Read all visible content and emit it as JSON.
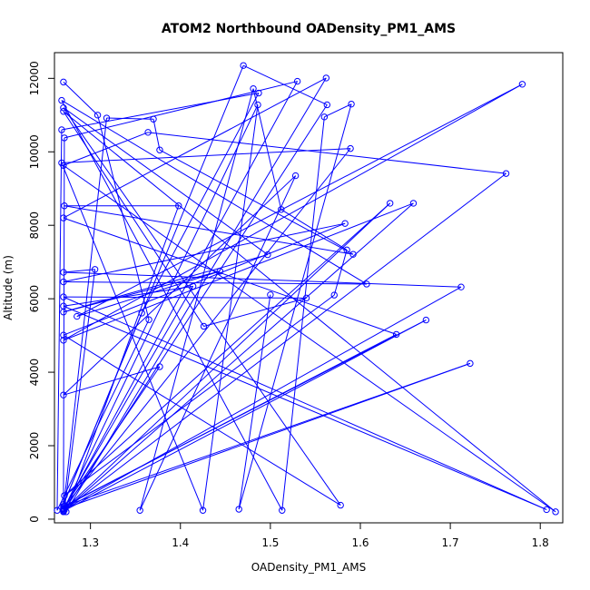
{
  "chart_data": {
    "type": "line",
    "title": "ATOM2 Northbound OADensity_PM1_AMS",
    "xlabel": "OADensity_PM1_AMS",
    "ylabel": "Altitude (m)",
    "xlim": [
      1.26,
      1.825
    ],
    "ylim": [
      -100,
      12700
    ],
    "x_ticks": [
      1.3,
      1.4,
      1.5,
      1.6,
      1.7,
      1.8
    ],
    "y_ticks": [
      0,
      2000,
      4000,
      6000,
      8000,
      10000,
      12000
    ],
    "grid": false,
    "legend": "none",
    "series": [
      {
        "color": "#0000ff",
        "marker": "open-circle",
        "points": [
          [
            1.27,
            11900
          ],
          [
            1.308,
            11000
          ],
          [
            1.365,
            5430
          ],
          [
            1.263,
            240
          ],
          [
            1.268,
            10600
          ],
          [
            1.487,
            11600
          ],
          [
            1.357,
            5610
          ],
          [
            1.27,
            400
          ],
          [
            1.47,
            12350
          ],
          [
            1.563,
            11280
          ],
          [
            1.27,
            200
          ],
          [
            1.271,
            10380
          ],
          [
            1.53,
            11920
          ],
          [
            1.27,
            250
          ],
          [
            1.486,
            11280
          ],
          [
            1.425,
            240
          ],
          [
            1.268,
            9700
          ],
          [
            1.589,
            10090
          ],
          [
            1.27,
            300
          ],
          [
            1.318,
            10920
          ],
          [
            1.37,
            10890
          ],
          [
            1.377,
            10050
          ],
          [
            1.592,
            7210
          ],
          [
            1.271,
            8530
          ],
          [
            1.398,
            8530
          ],
          [
            1.273,
            200
          ],
          [
            1.562,
            12010
          ],
          [
            1.27,
            8200
          ],
          [
            1.64,
            5030
          ],
          [
            1.271,
            350
          ],
          [
            1.377,
            4150
          ],
          [
            1.27,
            3380
          ],
          [
            1.528,
            9350
          ],
          [
            1.355,
            240
          ],
          [
            1.481,
            11720
          ],
          [
            1.512,
            8430
          ],
          [
            1.585,
            7330
          ],
          [
            1.571,
            6100
          ],
          [
            1.271,
            640
          ],
          [
            1.633,
            8600
          ],
          [
            1.27,
            250
          ],
          [
            1.712,
            6320
          ],
          [
            1.27,
            6720
          ],
          [
            1.305,
            6800
          ],
          [
            1.271,
            250
          ],
          [
            1.762,
            9410
          ],
          [
            1.364,
            10530
          ],
          [
            1.27,
            9630
          ],
          [
            1.817,
            200
          ],
          [
            1.27,
            11100
          ],
          [
            1.426,
            5250
          ],
          [
            1.54,
            6020
          ],
          [
            1.27,
            6050
          ],
          [
            1.807,
            260
          ],
          [
            1.27,
            5800
          ],
          [
            1.414,
            6340
          ],
          [
            1.27,
            280
          ],
          [
            1.722,
            4240
          ],
          [
            1.27,
            350
          ],
          [
            1.673,
            5420
          ],
          [
            1.27,
            220
          ],
          [
            1.659,
            8600
          ],
          [
            1.27,
            4870
          ],
          [
            1.78,
            11840
          ],
          [
            1.285,
            5520
          ],
          [
            1.444,
            6750
          ],
          [
            1.27,
            5640
          ],
          [
            1.497,
            7200
          ],
          [
            1.27,
            11200
          ],
          [
            1.578,
            380
          ],
          [
            1.27,
            5010
          ],
          [
            1.583,
            8050
          ],
          [
            1.27,
            6460
          ],
          [
            1.607,
            6400
          ],
          [
            1.268,
            11400
          ],
          [
            1.513,
            240
          ],
          [
            1.56,
            10950
          ],
          [
            1.59,
            11300
          ],
          [
            1.465,
            270
          ],
          [
            1.5,
            6110
          ]
        ]
      }
    ]
  }
}
